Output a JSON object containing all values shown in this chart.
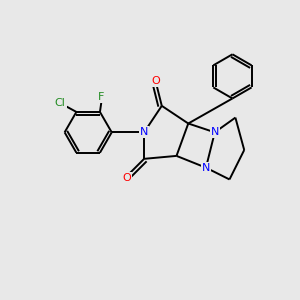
{
  "background_color": "#e8e8e8",
  "bond_color": "#000000",
  "N_color": "#0000ff",
  "O_color": "#ff0000",
  "F_color": "#228B22",
  "Cl_color": "#228B22",
  "line_width": 1.4,
  "figsize": [
    3.0,
    3.0
  ],
  "dpi": 100,
  "xlim": [
    0,
    10
  ],
  "ylim": [
    0,
    10
  ]
}
